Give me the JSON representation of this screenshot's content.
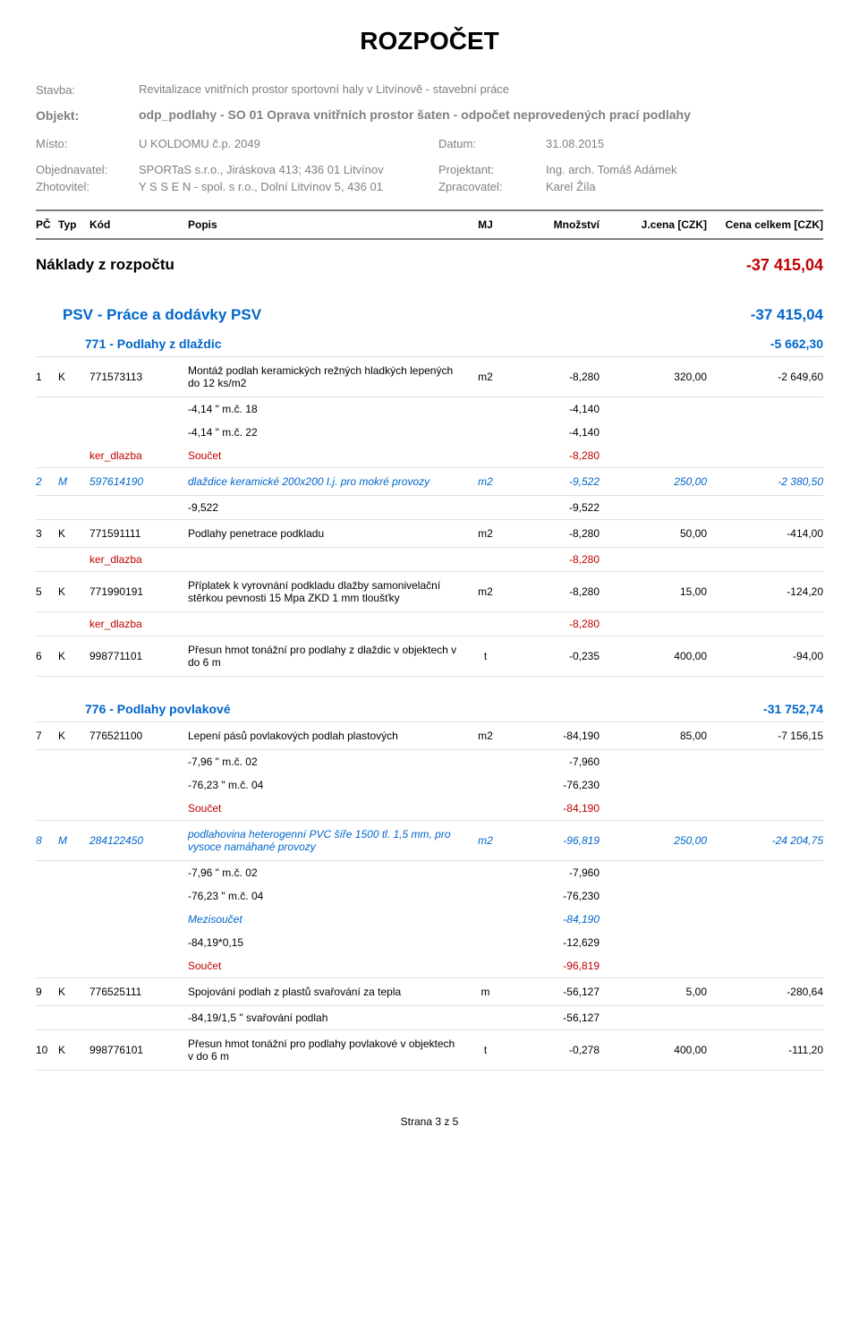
{
  "title": "ROZPOČET",
  "header": {
    "stavba_label": "Stavba:",
    "stavba_value": "Revitalizace vnitřních prostor sportovní haly v Litvínově - stavební práce",
    "objekt_label": "Objekt:",
    "objekt_value": "odp_podlahy - SO 01 Oprava vnitřních prostor šaten - odpočet neprovedených prací podlahy",
    "misto_label": "Místo:",
    "misto_value": "U KOLDOMU č.p. 2049",
    "datum_label": "Datum:",
    "datum_value": "31.08.2015",
    "objednavatel_label": "Objednavatel:",
    "objednavatel_value": "SPORTaS s.r.o., Jiráskova 413; 436 01 Litvínov",
    "projektant_label": "Projektant:",
    "projektant_value": "Ing. arch. Tomáš Adámek",
    "zhotovitel_label": "Zhotovitel:",
    "zhotovitel_value": "Y S S E N - spol. s r.o., Dolní Litvínov 5, 436 01",
    "zpracovatel_label": "Zpracovatel:",
    "zpracovatel_value": "Karel Žíla"
  },
  "table_header": {
    "pc": "PČ",
    "typ": "Typ",
    "kod": "Kód",
    "popis": "Popis",
    "mj": "MJ",
    "mnozstvi": "Množství",
    "jcena": "J.cena [CZK]",
    "cena_celkem": "Cena celkem [CZK]"
  },
  "naklady": {
    "label": "Náklady z rozpočtu",
    "value": "-37 415,04"
  },
  "psv": {
    "label": "PSV - Práce a dodávky PSV",
    "value": "-37 415,04"
  },
  "sec771": {
    "label": "771 - Podlahy z dlaždic",
    "value": "-5 662,30"
  },
  "rows771": [
    {
      "pc": "1",
      "typ": "K",
      "kod": "771573113",
      "popis": "Montáž podlah keramických režných hladkých lepených do 12 ks/m2",
      "mj": "m2",
      "mn": "-8,280",
      "jc": "320,00",
      "cc": "-2 649,60",
      "style": ""
    },
    {
      "calc": true,
      "popis": "-4,14 \" m.č. 18",
      "mn": "-4,140"
    },
    {
      "calc": true,
      "popis": "-4,14 \" m.č. 22",
      "mn": "-4,140"
    },
    {
      "calc": true,
      "kod": "ker_dlazba",
      "popis": "Součet",
      "mn": "-8,280",
      "style": "red"
    },
    {
      "pc": "2",
      "typ": "M",
      "kod": "597614190",
      "popis": "dlaždice keramické 200x200 I.j. pro mokré provozy",
      "mj": "m2",
      "mn": "-9,522",
      "jc": "250,00",
      "cc": "-2 380,50",
      "style": "blue"
    },
    {
      "calc": true,
      "popis": "-9,522",
      "mn": "-9,522"
    },
    {
      "pc": "3",
      "typ": "K",
      "kod": "771591111",
      "popis": "Podlahy penetrace podkladu",
      "mj": "m2",
      "mn": "-8,280",
      "jc": "50,00",
      "cc": "-414,00",
      "style": ""
    },
    {
      "calc": true,
      "kod": "ker_dlazba",
      "popis": "",
      "mn": "-8,280",
      "style": "red"
    },
    {
      "pc": "5",
      "typ": "K",
      "kod": "771990191",
      "popis": "Příplatek k vyrovnání podkladu dlažby samonivelační stěrkou pevnosti 15 Mpa ZKD 1 mm tloušťky",
      "mj": "m2",
      "mn": "-8,280",
      "jc": "15,00",
      "cc": "-124,20",
      "style": ""
    },
    {
      "calc": true,
      "kod": "ker_dlazba",
      "popis": "",
      "mn": "-8,280",
      "style": "red"
    },
    {
      "pc": "6",
      "typ": "K",
      "kod": "998771101",
      "popis": "Přesun hmot tonážní pro podlahy z dlaždic v objektech v do 6 m",
      "mj": "t",
      "mn": "-0,235",
      "jc": "400,00",
      "cc": "-94,00",
      "style": ""
    }
  ],
  "sec776": {
    "label": "776 - Podlahy povlakové",
    "value": "-31 752,74"
  },
  "rows776": [
    {
      "pc": "7",
      "typ": "K",
      "kod": "776521100",
      "popis": "Lepení pásů povlakových podlah plastových",
      "mj": "m2",
      "mn": "-84,190",
      "jc": "85,00",
      "cc": "-7 156,15",
      "style": ""
    },
    {
      "calc": true,
      "popis": "-7,96 \" m.č. 02",
      "mn": "-7,960"
    },
    {
      "calc": true,
      "popis": "-76,23 \" m.č. 04",
      "mn": "-76,230"
    },
    {
      "calc": true,
      "popis": "Součet",
      "mn": "-84,190",
      "style": "red"
    },
    {
      "pc": "8",
      "typ": "M",
      "kod": "284122450",
      "popis": "podlahovina heterogenní PVC šíře 1500 tl. 1,5 mm, pro vysoce namáhané provozy",
      "mj": "m2",
      "mn": "-96,819",
      "jc": "250,00",
      "cc": "-24 204,75",
      "style": "blue"
    },
    {
      "calc": true,
      "popis": "-7,96 \" m.č. 02",
      "mn": "-7,960"
    },
    {
      "calc": true,
      "popis": "-76,23 \" m.č. 04",
      "mn": "-76,230"
    },
    {
      "calc": true,
      "popis": "Mezisoučet",
      "mn": "-84,190",
      "style": "blue"
    },
    {
      "calc": true,
      "popis": "-84,19*0,15",
      "mn": "-12,629"
    },
    {
      "calc": true,
      "popis": "Součet",
      "mn": "-96,819",
      "style": "red"
    },
    {
      "pc": "9",
      "typ": "K",
      "kod": "776525111",
      "popis": "Spojování podlah z plastů svařování za tepla",
      "mj": "m",
      "mn": "-56,127",
      "jc": "5,00",
      "cc": "-280,64",
      "style": ""
    },
    {
      "calc": true,
      "popis": "-84,19/1,5 \" svařování podlah",
      "mn": "-56,127"
    },
    {
      "pc": "10",
      "typ": "K",
      "kod": "998776101",
      "popis": "Přesun hmot tonážní pro podlahy povlakové v objektech v do 6 m",
      "mj": "t",
      "mn": "-0,278",
      "jc": "400,00",
      "cc": "-111,20",
      "style": ""
    }
  ],
  "footer": "Strana 3 z 5"
}
